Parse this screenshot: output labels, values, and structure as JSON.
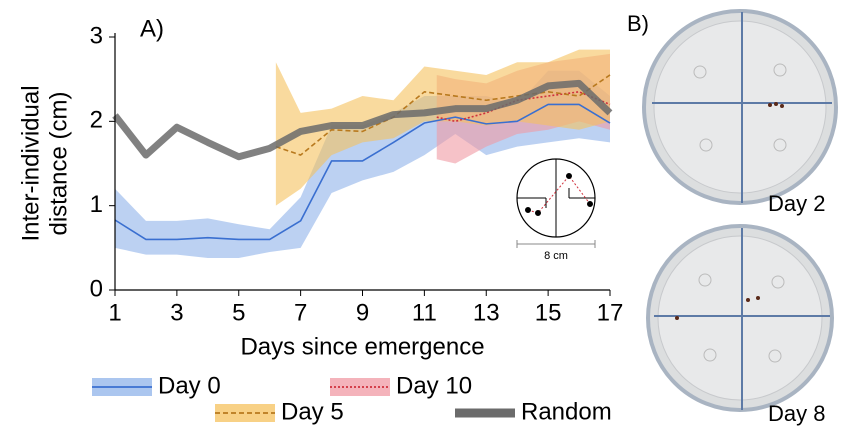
{
  "chart_data": {
    "type": "line",
    "panel_label": "A)",
    "xlabel": "Days since emergence",
    "ylabel": [
      "Inter-individual",
      "distance (cm)"
    ],
    "xlim": [
      1,
      17
    ],
    "xticks": [
      1,
      3,
      5,
      7,
      9,
      11,
      13,
      15,
      17
    ],
    "ylim": [
      0,
      3
    ],
    "yticks": [
      0,
      1,
      2,
      3
    ],
    "inset_label": "8 cm",
    "series": [
      {
        "name": "Day 0",
        "color": "#3a6fd0",
        "band_color": "#8fb3ea",
        "line_style": "solid",
        "x": [
          1,
          2,
          3,
          4,
          5,
          6,
          7,
          8,
          9,
          10,
          11,
          12,
          13,
          14,
          15,
          16,
          17
        ],
        "values": [
          0.83,
          0.6,
          0.6,
          0.62,
          0.6,
          0.6,
          0.82,
          1.53,
          1.53,
          1.75,
          1.98,
          2.05,
          1.97,
          2.0,
          2.2,
          2.2,
          1.98
        ],
        "lower": [
          0.5,
          0.42,
          0.42,
          0.38,
          0.38,
          0.45,
          0.5,
          1.15,
          1.3,
          1.4,
          1.6,
          1.85,
          1.6,
          1.7,
          1.75,
          1.8,
          1.75
        ],
        "upper": [
          1.2,
          0.82,
          0.82,
          0.85,
          0.78,
          0.72,
          1.1,
          1.95,
          1.95,
          2.1,
          2.3,
          2.3,
          2.3,
          2.2,
          2.6,
          2.6,
          2.3
        ]
      },
      {
        "name": "Day 10",
        "color": "#d0303c",
        "band_color": "#f09aa4",
        "line_style": "dotted",
        "x": [
          11.4,
          12,
          13,
          14,
          15,
          16,
          17
        ],
        "values": [
          2.05,
          2.0,
          2.1,
          2.25,
          2.3,
          2.35,
          2.2
        ],
        "lower": [
          1.55,
          1.5,
          1.7,
          1.85,
          1.9,
          2.0,
          1.9
        ],
        "upper": [
          2.55,
          2.5,
          2.45,
          2.6,
          2.7,
          2.75,
          2.8
        ]
      },
      {
        "name": "Day 5",
        "color": "#b8791e",
        "band_color": "#f5c25e",
        "line_style": "dashed",
        "x": [
          6.2,
          7,
          8,
          9,
          10,
          11,
          12,
          13,
          14,
          15,
          16,
          17
        ],
        "values": [
          1.7,
          1.6,
          1.9,
          1.88,
          2.05,
          2.35,
          2.3,
          2.25,
          2.3,
          2.35,
          2.3,
          2.55
        ],
        "lower": [
          1.0,
          1.2,
          1.6,
          1.75,
          1.8,
          2.0,
          2.0,
          1.95,
          2.0,
          1.95,
          1.9,
          2.0
        ],
        "upper": [
          2.7,
          2.1,
          2.15,
          2.3,
          2.25,
          2.65,
          2.6,
          2.55,
          2.7,
          2.7,
          2.85,
          2.85
        ]
      },
      {
        "name": "Random",
        "color": "#6b6b6b",
        "line_style": "thick",
        "x": [
          1,
          2,
          3,
          4,
          5,
          6,
          7,
          8,
          9,
          10,
          11,
          12,
          13,
          14,
          15,
          16,
          17
        ],
        "values": [
          2.07,
          1.6,
          1.93,
          1.75,
          1.58,
          1.68,
          1.88,
          1.95,
          1.95,
          2.08,
          2.1,
          2.15,
          2.15,
          2.25,
          2.42,
          2.45,
          2.1
        ]
      }
    ]
  },
  "photos": {
    "panel_label": "B)",
    "labels": [
      "Day 2",
      "Day 8"
    ]
  }
}
